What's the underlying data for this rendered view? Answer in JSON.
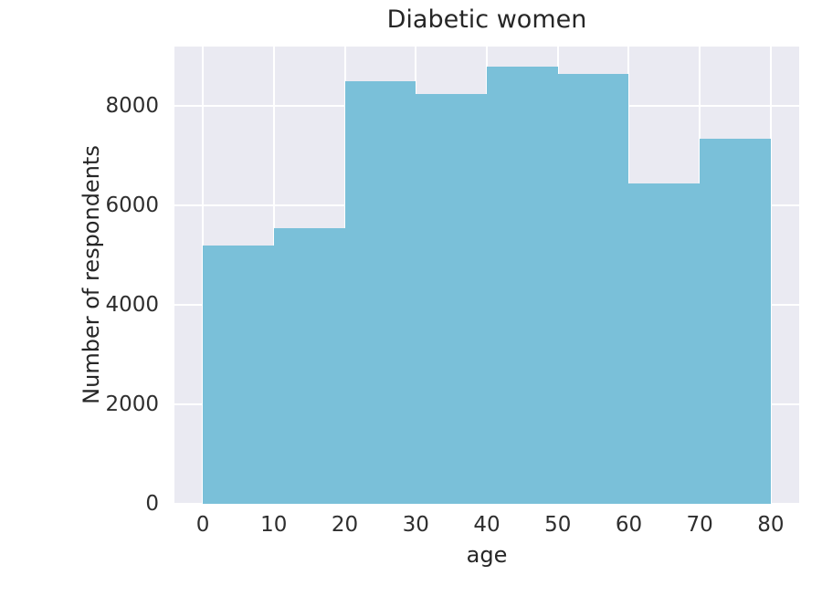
{
  "chart_data": {
    "type": "histogram",
    "title": "Diabetic women",
    "xlabel": "age",
    "ylabel": "Number of respondents",
    "bin_edges": [
      0,
      10,
      20,
      30,
      40,
      50,
      60,
      70,
      80
    ],
    "values": [
      5200,
      5550,
      8500,
      8250,
      8800,
      8650,
      6450,
      7350
    ],
    "xticks": [
      0,
      10,
      20,
      30,
      40,
      50,
      60,
      70,
      80
    ],
    "yticks": [
      0,
      2000,
      4000,
      6000,
      8000
    ],
    "xlim": [
      -4,
      84
    ],
    "ylim": [
      0,
      9200
    ],
    "grid": true,
    "legend": false,
    "colors": {
      "bar": "#7ac0d9",
      "plot_background": "#eaeaf2",
      "grid": "#ffffff",
      "figure_background": "#ffffff",
      "text": "#262626",
      "tick_text": "#2e2e2e"
    }
  }
}
